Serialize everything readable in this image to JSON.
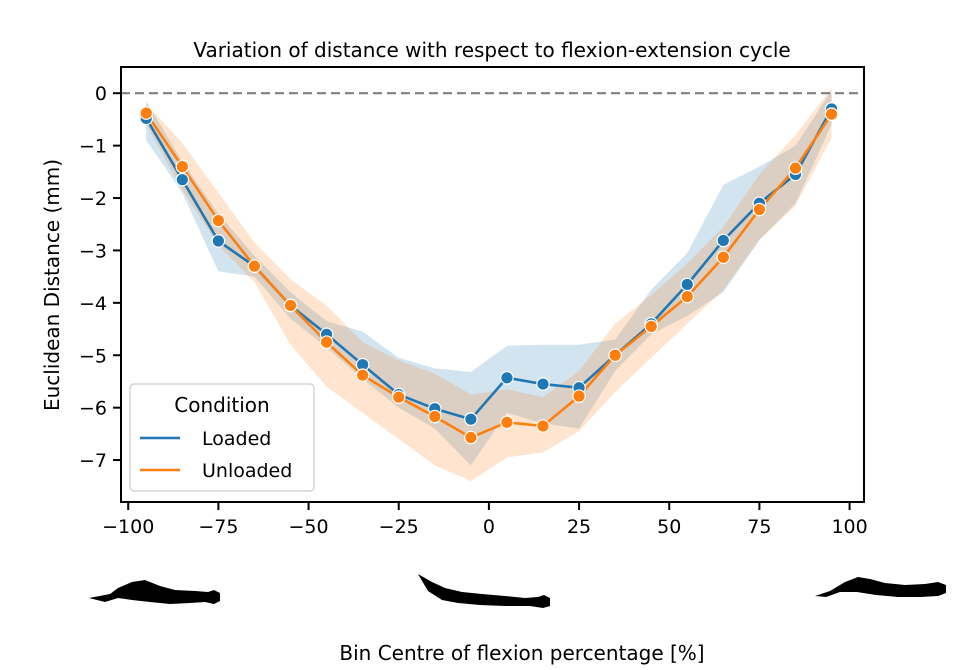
{
  "chart_data": {
    "type": "line",
    "title": "Variation of distance with respect to flexion-extension cycle",
    "xlabel": "Bin Centre of flexion percentage [%]",
    "ylabel": "Euclidean Distance (mm)",
    "xlim": [
      -102,
      104
    ],
    "ylim": [
      -7.8,
      0.5
    ],
    "xticks": [
      -100,
      -75,
      -50,
      -25,
      0,
      25,
      50,
      75,
      100
    ],
    "xtick_labels": [
      "−100",
      "−75",
      "−50",
      "−25",
      "0",
      "25",
      "50",
      "75",
      "100"
    ],
    "yticks": [
      0,
      -1,
      -2,
      -3,
      -4,
      -5,
      -6,
      -7
    ],
    "ytick_labels": [
      "0",
      "−1",
      "−2",
      "−3",
      "−4",
      "−5",
      "−6",
      "−7"
    ],
    "reference_line": {
      "y": 0,
      "style": "dashed",
      "color": "#808080"
    },
    "x": [
      -95,
      -85,
      -75,
      -65,
      -55,
      -45,
      -35,
      -25,
      -15,
      -5,
      5,
      15,
      25,
      35,
      45,
      55,
      65,
      75,
      85,
      95
    ],
    "series": [
      {
        "name": "Loaded",
        "color": "#1f77b4",
        "values": [
          -0.48,
          -1.65,
          -2.82,
          -3.3,
          -4.05,
          -4.6,
          -5.18,
          -5.75,
          -6.02,
          -6.22,
          -5.43,
          -5.55,
          -5.62,
          -5.0,
          -4.4,
          -3.65,
          -2.81,
          -2.1,
          -1.55,
          -0.3
        ],
        "ci_lower": [
          -0.9,
          -1.9,
          -3.4,
          -3.5,
          -4.3,
          -4.85,
          -5.45,
          -6.0,
          -6.4,
          -7.1,
          -6.1,
          -6.3,
          -6.4,
          -5.3,
          -4.6,
          -4.25,
          -3.8,
          -2.8,
          -2.1,
          -0.6
        ],
        "ci_upper": [
          -0.15,
          -1.3,
          -2.3,
          -3.1,
          -3.8,
          -4.35,
          -4.55,
          -5.05,
          -5.25,
          -5.32,
          -4.82,
          -4.8,
          -4.8,
          -4.7,
          -3.75,
          -3.05,
          -1.75,
          -1.4,
          -1.0,
          0.05
        ]
      },
      {
        "name": "Unloaded",
        "color": "#ff7f0e",
        "values": [
          -0.38,
          -1.4,
          -2.43,
          -3.3,
          -4.05,
          -4.75,
          -5.38,
          -5.8,
          -6.17,
          -6.57,
          -6.28,
          -6.35,
          -5.78,
          -5.0,
          -4.45,
          -3.88,
          -3.13,
          -2.22,
          -1.43,
          -0.4
        ],
        "ci_lower": [
          -0.6,
          -1.85,
          -2.9,
          -3.6,
          -4.8,
          -5.6,
          -6.1,
          -6.6,
          -7.1,
          -7.4,
          -6.95,
          -6.85,
          -6.45,
          -5.7,
          -5.05,
          -4.4,
          -3.75,
          -2.8,
          -2.15,
          -0.85
        ],
        "ci_upper": [
          -0.2,
          -0.95,
          -1.9,
          -2.85,
          -3.55,
          -4.05,
          -4.75,
          -5.1,
          -5.35,
          -5.75,
          -5.65,
          -5.8,
          -5.3,
          -4.4,
          -3.85,
          -3.25,
          -2.55,
          -1.55,
          -0.8,
          0.1
        ]
      }
    ],
    "legend": {
      "title": "Condition",
      "placement": "lower-left",
      "entries": [
        "Loaded",
        "Unloaded"
      ]
    },
    "illustrations": [
      {
        "icon": "reclined-figure-icon",
        "at_x": -100
      },
      {
        "icon": "flat-figure-icon",
        "at_x": 0
      },
      {
        "icon": "raised-figure-icon",
        "at_x": 100
      }
    ]
  }
}
